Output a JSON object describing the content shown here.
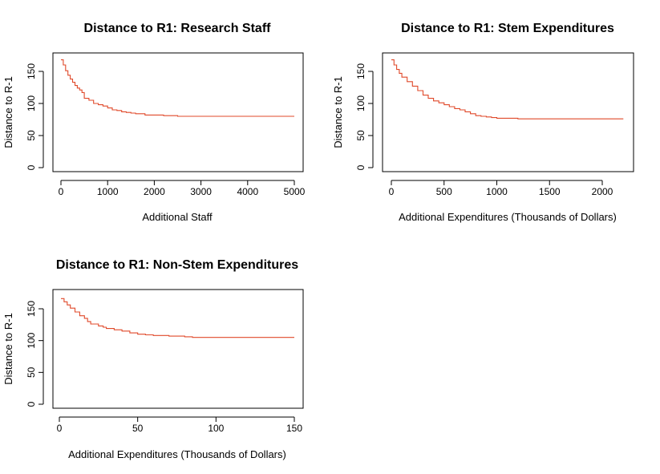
{
  "colors": {
    "series": "#e0492a"
  },
  "chart_data": [
    {
      "type": "line",
      "title": "Distance to R1: Research Staff",
      "xlabel": "Additional Staff",
      "ylabel": "Distance to R-1",
      "xlim": [
        0,
        5000
      ],
      "ylim": [
        0,
        170
      ],
      "xticks": [
        "0",
        "1000",
        "2000",
        "3000",
        "4000",
        "5000"
      ],
      "yticks": [
        "0",
        "50",
        "100",
        "150"
      ],
      "grid": false,
      "series": [
        {
          "x": [
            0,
            50,
            100,
            150,
            200,
            250,
            300,
            350,
            400,
            450,
            500,
            600,
            700,
            800,
            900,
            1000,
            1100,
            1200,
            1300,
            1400,
            1500,
            1600,
            1800,
            2000,
            2200,
            2500,
            3000,
            4000,
            5000
          ],
          "y": [
            168,
            160,
            151,
            144,
            138,
            133,
            128,
            124,
            121,
            117,
            108,
            105,
            100,
            98,
            96,
            93,
            90,
            89,
            87,
            86,
            85,
            84,
            82,
            82,
            81,
            80,
            80,
            80,
            80
          ]
        }
      ]
    },
    {
      "type": "line",
      "title": "Distance to R1: Stem Expenditures",
      "xlabel": "Additional Expenditures (Thousands of Dollars)",
      "ylabel": "Distance to R-1",
      "xlim": [
        0,
        2200
      ],
      "ylim": [
        0,
        170
      ],
      "xticks": [
        "0",
        "500",
        "1000",
        "1500",
        "2000"
      ],
      "yticks": [
        "0",
        "50",
        "100",
        "150"
      ],
      "grid": false,
      "series": [
        {
          "x": [
            0,
            25,
            50,
            75,
            100,
            150,
            200,
            250,
            300,
            350,
            400,
            450,
            500,
            550,
            600,
            650,
            700,
            750,
            800,
            850,
            900,
            950,
            1000,
            1100,
            1200,
            1500,
            1800,
            2200
          ],
          "y": [
            168,
            160,
            153,
            147,
            141,
            134,
            127,
            120,
            113,
            108,
            104,
            101,
            98,
            95,
            92,
            90,
            87,
            84,
            81,
            80,
            79,
            78,
            77,
            77,
            76,
            76,
            76,
            76
          ]
        }
      ]
    },
    {
      "type": "line",
      "title": "Distance to R1: Non-Stem Expenditures",
      "xlabel": "Additional Expenditures (Thousands of Dollars)",
      "ylabel": "Distance to R-1",
      "xlim": [
        0,
        150
      ],
      "ylim": [
        0,
        170
      ],
      "xticks": [
        "0",
        "50",
        "100",
        "150"
      ],
      "yticks": [
        "0",
        "50",
        "100",
        "150"
      ],
      "grid": false,
      "series": [
        {
          "x": [
            1,
            3,
            5,
            7,
            10,
            13,
            16,
            18,
            20,
            25,
            28,
            30,
            35,
            40,
            45,
            50,
            55,
            60,
            70,
            80,
            85,
            100,
            120,
            150
          ],
          "y": [
            166,
            161,
            156,
            151,
            145,
            139,
            135,
            130,
            126,
            123,
            121,
            119,
            117,
            115,
            112,
            110,
            109,
            108,
            107,
            106,
            105,
            105,
            105,
            105
          ]
        }
      ]
    }
  ]
}
